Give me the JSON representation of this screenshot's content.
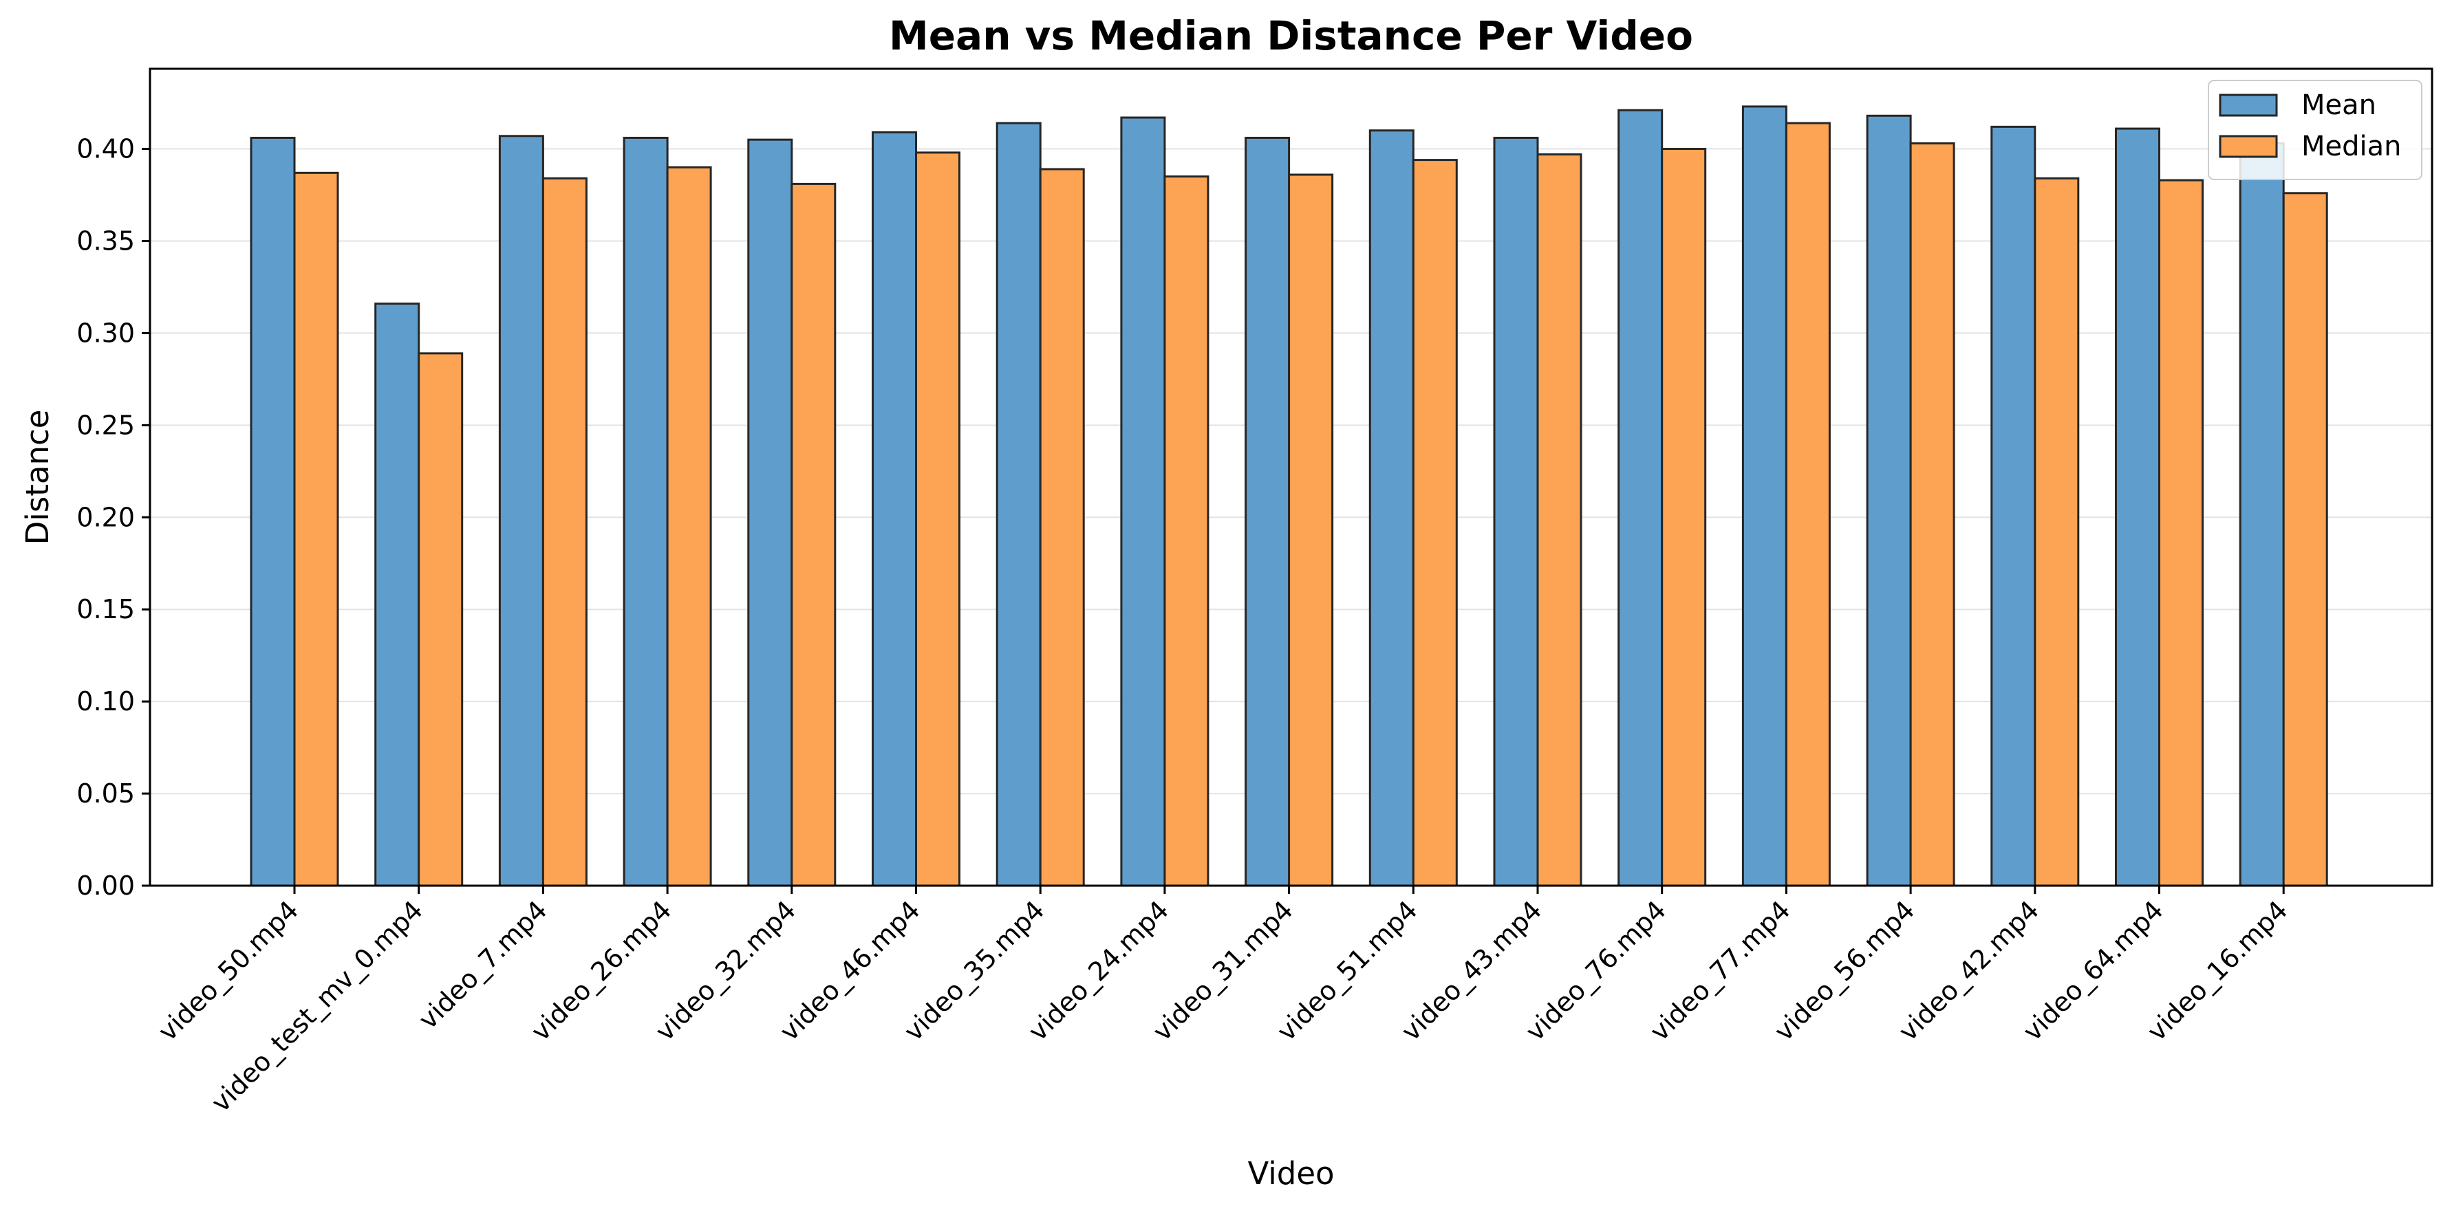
{
  "chart_data": {
    "type": "bar",
    "title": "Mean vs Median Distance Per Video",
    "xlabel": "Video",
    "ylabel": "Distance",
    "ylim": [
      0,
      0.4435
    ],
    "yticks": [
      "0.00",
      "0.05",
      "0.10",
      "0.15",
      "0.20",
      "0.25",
      "0.30",
      "0.35",
      "0.40"
    ],
    "grid": "horizontal",
    "legend_position": "top-right",
    "categories": [
      "video_50.mp4",
      "video_test_mv_0.mp4",
      "video_7.mp4",
      "video_26.mp4",
      "video_32.mp4",
      "video_46.mp4",
      "video_35.mp4",
      "video_24.mp4",
      "video_31.mp4",
      "video_51.mp4",
      "video_43.mp4",
      "video_76.mp4",
      "video_77.mp4",
      "video_56.mp4",
      "video_42.mp4",
      "video_64.mp4",
      "video_16.mp4"
    ],
    "series": [
      {
        "name": "Mean",
        "color": "#5f9ecc",
        "values": [
          0.406,
          0.316,
          0.407,
          0.406,
          0.405,
          0.409,
          0.414,
          0.417,
          0.406,
          0.41,
          0.406,
          0.421,
          0.423,
          0.418,
          0.412,
          0.411,
          0.403
        ]
      },
      {
        "name": "Median",
        "color": "#fca453",
        "values": [
          0.387,
          0.289,
          0.384,
          0.39,
          0.381,
          0.398,
          0.389,
          0.385,
          0.386,
          0.394,
          0.397,
          0.4,
          0.414,
          0.403,
          0.384,
          0.383,
          0.376
        ]
      }
    ]
  }
}
